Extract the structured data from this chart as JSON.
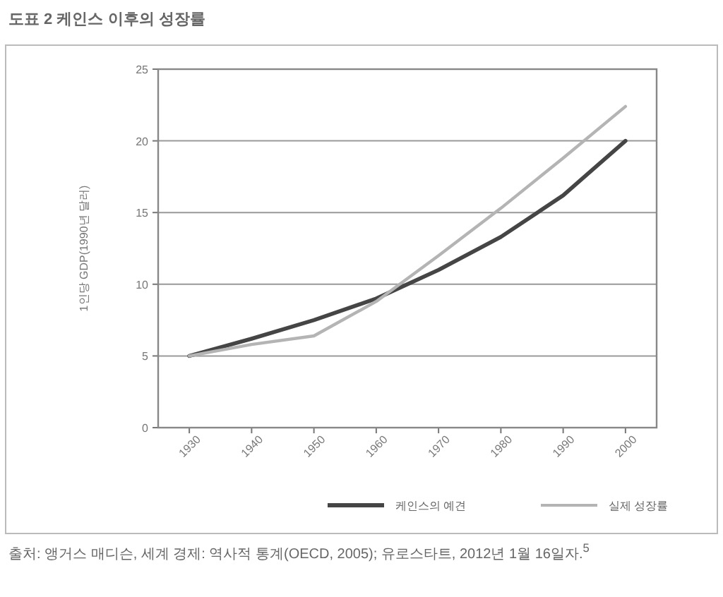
{
  "chart_data": {
    "type": "line",
    "title": "도표 2 케인스 이후의 성장률",
    "ylabel": "1인당 GDP(1990년 달러)",
    "annotations": [
      "출처: 앵거스 매디슨, 세계 경제: 역사적 통계(OECD, 2005); 유로스타트, 2012년 1월 16일자.$^{5}$"
    ],
    "x": [
      1930,
      1940,
      1950,
      1960,
      1970,
      1980,
      1990,
      2000
    ],
    "xlim": [
      1925,
      2005
    ],
    "xticks": [
      1930,
      1940,
      1950,
      1960,
      1970,
      1980,
      1990,
      2000
    ],
    "ylim": [
      0,
      25
    ],
    "yticks": [
      0,
      5,
      10,
      15,
      20,
      25
    ],
    "grid": "y",
    "legend": "bottom",
    "series": [
      {
        "name": "케인스의 예견",
        "color": "#454545",
        "values": [
          5,
          6.2,
          7.5,
          9,
          11,
          13.3,
          16.2,
          20
        ]
      },
      {
        "name": "실제 성장률",
        "color": "#b4b4b4",
        "values": [
          5,
          5.8,
          6.4,
          8.8,
          12,
          15.3,
          18.8,
          22.4
        ]
      }
    ]
  }
}
